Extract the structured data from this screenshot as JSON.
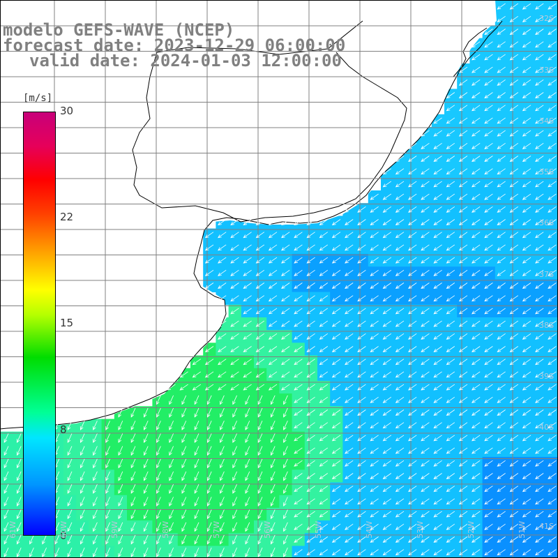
{
  "title": {
    "line1": "modelo GEFS-WAVE (NCEP)",
    "line2": "forecast date: 2023-12-29 06:00:00",
    "line3": "valid date: 2024-01-03 12:00:00"
  },
  "colorbar": {
    "unit": "[m/s]",
    "ticks": [
      "30",
      "22",
      "15",
      "8",
      "0"
    ],
    "tick_values": [
      30,
      22,
      15,
      8,
      0
    ],
    "range": [
      0,
      30
    ],
    "colors": [
      "#0000ff",
      "#0096ff",
      "#00e6ff",
      "#00ff96",
      "#00dd00",
      "#b4ff00",
      "#ffff00",
      "#ff9600",
      "#ff0000",
      "#c8007a"
    ]
  },
  "map": {
    "land_color": "#ffffff",
    "coast_color": "#000000",
    "grid_color": "#808080",
    "vector_color": "#ffffff",
    "grid": true,
    "lat_labels": [
      "32S",
      "33S",
      "34S",
      "35S",
      "36S",
      "37S",
      "38S",
      "39S",
      "40S",
      "41S"
    ],
    "lon_labels": [
      "61W",
      "60W",
      "59W",
      "58W",
      "57W",
      "56W",
      "55W",
      "54W",
      "53W",
      "52W",
      "51W"
    ]
  }
}
